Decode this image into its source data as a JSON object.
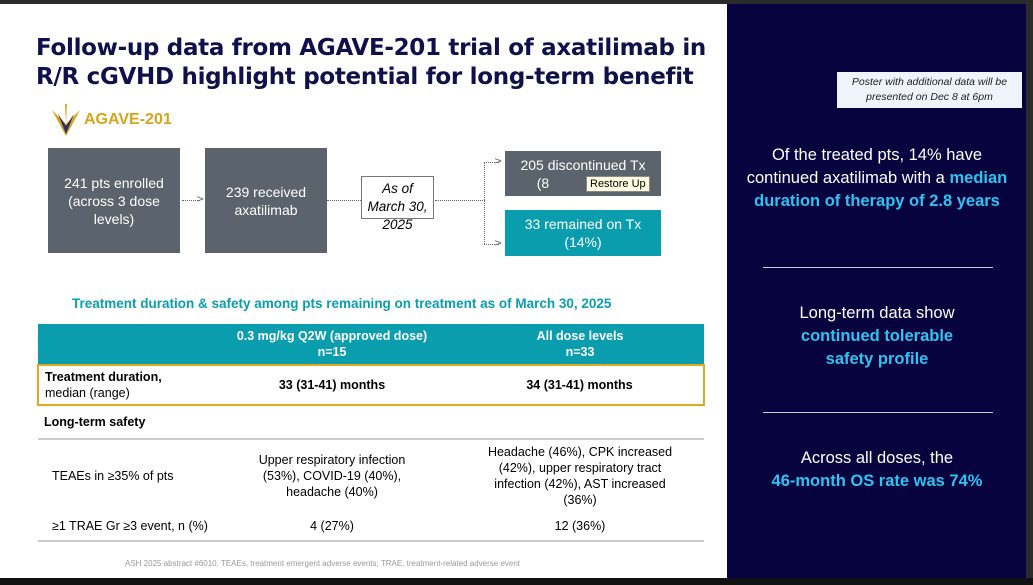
{
  "title": {
    "line1": "Follow-up data from AGAVE-201 trial of axatilimab in",
    "line2": "R/R cGVHD highlight potential for long-term benefit"
  },
  "logo": {
    "text": "AGAVE-201"
  },
  "flow": {
    "enrolled": "241 pts enrolled (across 3 dose levels)",
    "received": "239 received axatilimab",
    "date": "As of March 30, 2025",
    "discontinued": "205 discontinued Tx",
    "discontinued_pct": "(8",
    "remained": "33 remained on Tx",
    "remained_pct": "(14%)"
  },
  "tooltip": "Restore Up",
  "subhead": "Treatment duration & safety among pts remaining on treatment as of March 30, 2025",
  "table": {
    "headers": [
      {
        "l1": "",
        "l2": ""
      },
      {
        "l1": "0.3 mg/kg Q2W (approved dose)",
        "l2": "n=15"
      },
      {
        "l1": "All dose levels",
        "l2": "n=33"
      }
    ],
    "duration": {
      "label1": "Treatment duration,",
      "label2": "median (range)",
      "c1": "33 (31-41) months",
      "c2": "34 (31-41) months"
    },
    "section": "Long-term safety",
    "teaes": {
      "label": "TEAEs in ≥35% of pts",
      "c1": "Upper respiratory infection (53%), COVID-19 (40%), headache (40%)",
      "c2": "Headache (46%), CPK increased (42%), upper respiratory tract infection (42%), AST increased (36%)"
    },
    "trae": {
      "label": "≥1 TRAE Gr ≥3 event, n (%)",
      "c1": "4 (27%)",
      "c2": "12 (36%)"
    }
  },
  "footnote": "ASH 2025 abstract #6010. TEAEs, treatment emergent adverse events; TRAE, treatment-related adverse event",
  "panel": {
    "poster": "Poster with additional data will be presented on Dec 8 at 6pm",
    "p1": "Of the treated pts, 14% have continued axatilimab with a",
    "p1_hl": "median duration of therapy of 2.8 years",
    "p2": "Long-term data show",
    "p2_hl": "continued tolerable safety profile",
    "p3": "Across all doses, the",
    "p3_hl": "46-month OS rate was 74%"
  }
}
